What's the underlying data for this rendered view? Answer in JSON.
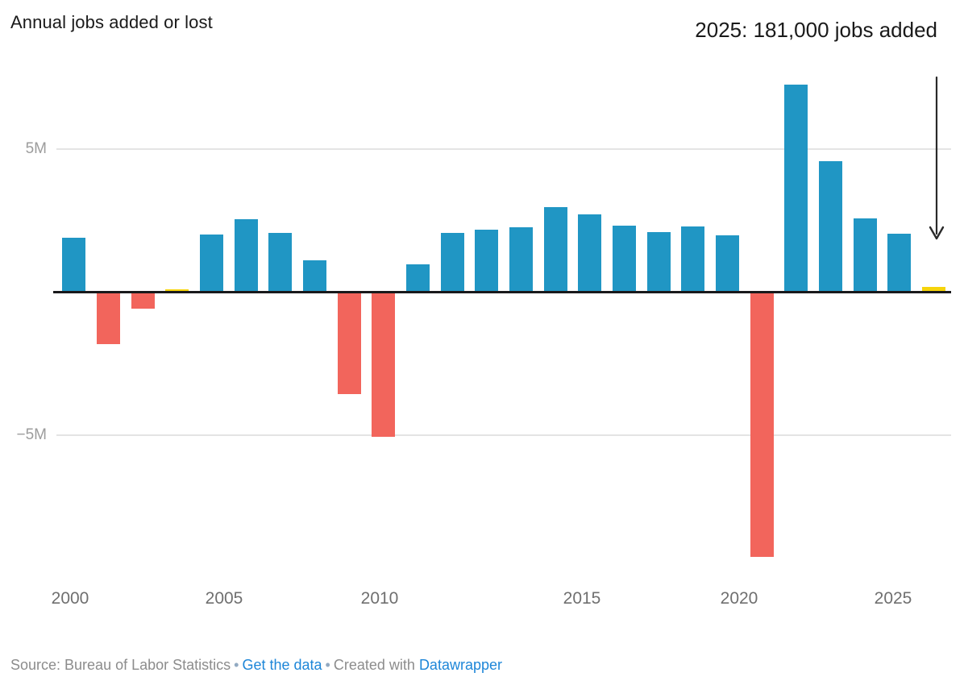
{
  "header": {
    "title": "Annual jobs added or lost"
  },
  "annotation": {
    "text": "2025: 181,000 jobs added"
  },
  "chart_data": {
    "type": "bar",
    "title": "Annual jobs added or lost",
    "unit": "jobs, millions",
    "categories": [
      2000,
      2001,
      2002,
      2003,
      2004,
      2005,
      2006,
      2007,
      2008,
      2009,
      2010,
      2011,
      2012,
      2013,
      2014,
      2015,
      2016,
      2017,
      2018,
      2019,
      2020,
      2021,
      2022,
      2023,
      2024,
      2025
    ],
    "values": [
      1.9,
      -1.8,
      -0.55,
      0.09,
      2.0,
      2.55,
      2.07,
      1.1,
      -3.55,
      -5.05,
      0.97,
      2.05,
      2.17,
      2.26,
      2.96,
      2.71,
      2.32,
      2.09,
      2.29,
      1.96,
      -9.25,
      7.25,
      4.56,
      2.56,
      2.02,
      0.181
    ],
    "annotation_value_2025": "181,000 jobs added",
    "x_ticks": [
      "2000",
      "2005",
      "2010",
      "2015",
      "2020",
      "2025"
    ],
    "y_ticks": [
      {
        "label": "5M",
        "value": 5
      },
      {
        "label": "−5M",
        "value": -5
      }
    ],
    "ylim": [
      -9.5,
      7.5
    ],
    "grid": "horizontal",
    "legend": "none",
    "colors": {
      "positive": "#2096c4",
      "negative": "#f2655c",
      "highlight": "#f6d40b"
    },
    "highlight_years": [
      2003,
      2025
    ]
  },
  "footer": {
    "source_text": "Source: Bureau of Labor Statistics",
    "separator": "•",
    "get_data_label": "Get the data",
    "created_with_label": "Created with",
    "tool_name": "Datawrapper"
  }
}
